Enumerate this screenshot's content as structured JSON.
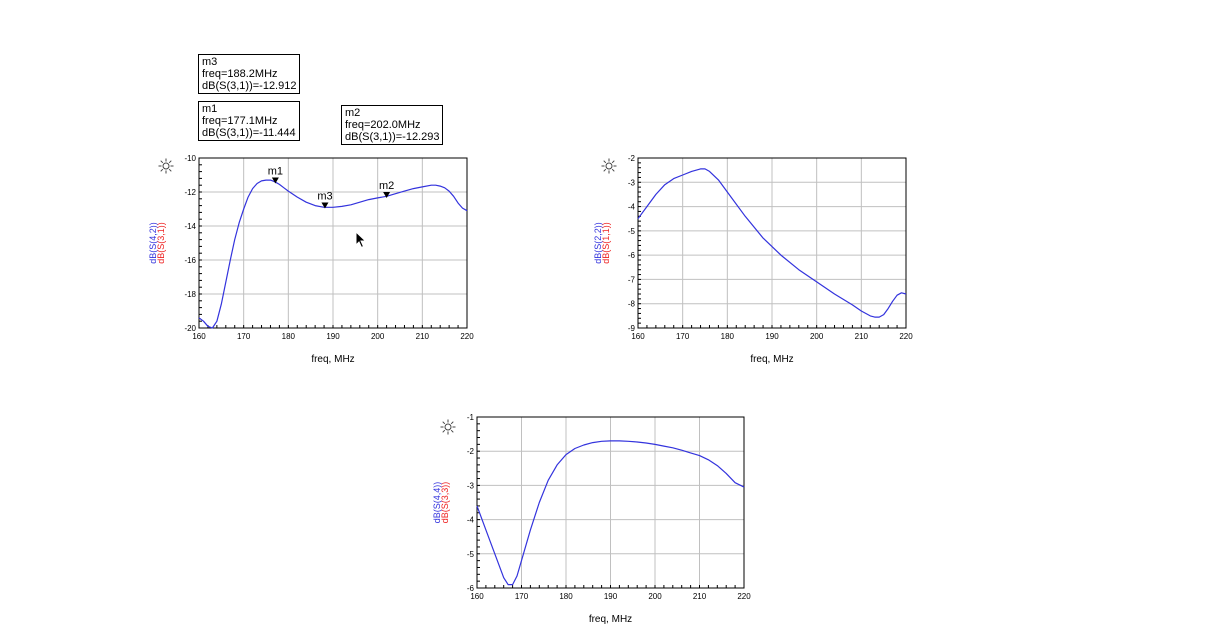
{
  "markers": [
    {
      "id": "m3",
      "name": "m3",
      "freq": "freq=188.2MHz",
      "value": "dB(S(3,1))=-12.912"
    },
    {
      "id": "m1",
      "name": "m1",
      "freq": "freq=177.1MHz",
      "value": "dB(S(3,1))=-11.444"
    },
    {
      "id": "m2",
      "name": "m2",
      "freq": "freq=202.0MHz",
      "value": "dB(S(3,1))=-12.293"
    }
  ],
  "colors": {
    "blue": "#3333dd",
    "red": "#ee2222",
    "grid": "#c0c0c0",
    "axis": "#000000"
  },
  "icons": {
    "settings": "sun-gear-icon",
    "cursor": "mouse-pointer-icon"
  },
  "chart_data": [
    {
      "id": "chart1",
      "type": "line",
      "xlabel": "freq, MHz",
      "ylabels": [
        {
          "text": "dB(S(4,2))",
          "color": "#3333dd"
        },
        {
          "text": "dB(S(3,1))",
          "color": "#ee2222"
        }
      ],
      "xlim": [
        160,
        220
      ],
      "ylim": [
        -20,
        -10
      ],
      "xticks": [
        160,
        170,
        180,
        190,
        200,
        210,
        220
      ],
      "yticks": [
        -20,
        -18,
        -16,
        -14,
        -12,
        -10
      ],
      "grid": true,
      "series": [
        {
          "color": "#3333dd",
          "x": [
            160,
            161,
            162,
            163,
            164,
            165,
            166,
            167,
            168,
            169,
            170,
            171,
            172,
            173,
            174,
            175,
            176,
            177,
            178,
            179,
            180,
            182,
            184,
            186,
            188,
            190,
            192,
            194,
            196,
            198,
            200,
            202,
            204,
            206,
            208,
            210,
            212,
            213,
            214,
            215,
            216,
            217,
            218,
            219,
            220
          ],
          "y": [
            -19.4,
            -19.6,
            -19.9,
            -20.0,
            -19.6,
            -18.6,
            -17.3,
            -16.0,
            -14.8,
            -13.8,
            -13.0,
            -12.3,
            -11.8,
            -11.5,
            -11.35,
            -11.3,
            -11.3,
            -11.4,
            -11.55,
            -11.75,
            -11.95,
            -12.3,
            -12.6,
            -12.8,
            -12.9,
            -12.9,
            -12.85,
            -12.75,
            -12.6,
            -12.45,
            -12.35,
            -12.25,
            -12.1,
            -11.95,
            -11.8,
            -11.7,
            -11.6,
            -11.6,
            -11.65,
            -11.75,
            -11.95,
            -12.25,
            -12.65,
            -12.95,
            -13.1
          ]
        }
      ],
      "markers": [
        {
          "name": "m1",
          "x": 177.1,
          "y": -11.444
        },
        {
          "name": "m3",
          "x": 188.2,
          "y": -12.912
        },
        {
          "name": "m2",
          "x": 202.0,
          "y": -12.293
        }
      ]
    },
    {
      "id": "chart2",
      "type": "line",
      "xlabel": "freq, MHz",
      "ylabels": [
        {
          "text": "dB(S(2,2))",
          "color": "#3333dd"
        },
        {
          "text": "dB(S(1,1))",
          "color": "#ee2222"
        }
      ],
      "xlim": [
        160,
        220
      ],
      "ylim": [
        -9,
        -2
      ],
      "xticks": [
        160,
        170,
        180,
        190,
        200,
        210,
        220
      ],
      "yticks": [
        -9,
        -8,
        -7,
        -6,
        -5,
        -4,
        -3,
        -2
      ],
      "grid": true,
      "series": [
        {
          "color": "#3333dd",
          "x": [
            160,
            162,
            164,
            166,
            168,
            170,
            172,
            174,
            175,
            176,
            178,
            180,
            184,
            188,
            192,
            196,
            200,
            204,
            208,
            210,
            212,
            213,
            214,
            215,
            216,
            217,
            218,
            219,
            220
          ],
          "y": [
            -4.5,
            -4.0,
            -3.5,
            -3.1,
            -2.85,
            -2.7,
            -2.55,
            -2.45,
            -2.45,
            -2.55,
            -2.9,
            -3.4,
            -4.4,
            -5.3,
            -6.0,
            -6.6,
            -7.1,
            -7.6,
            -8.05,
            -8.3,
            -8.5,
            -8.55,
            -8.55,
            -8.45,
            -8.2,
            -7.9,
            -7.65,
            -7.55,
            -7.6
          ]
        }
      ],
      "markers": []
    },
    {
      "id": "chart3",
      "type": "line",
      "xlabel": "freq, MHz",
      "ylabels": [
        {
          "text": "dB(S(4,4))",
          "color": "#3333dd"
        },
        {
          "text": "dB(S(3,3))",
          "color": "#ee2222"
        }
      ],
      "xlim": [
        160,
        220
      ],
      "ylim": [
        -6,
        -1
      ],
      "xticks": [
        160,
        170,
        180,
        190,
        200,
        210,
        220
      ],
      "yticks": [
        -6,
        -5,
        -4,
        -3,
        -2,
        -1
      ],
      "grid": true,
      "series": [
        {
          "color": "#3333dd",
          "x": [
            160,
            162,
            164,
            166,
            167,
            168,
            169,
            170,
            172,
            174,
            176,
            178,
            180,
            182,
            184,
            186,
            188,
            190,
            192,
            194,
            196,
            198,
            200,
            202,
            204,
            206,
            208,
            210,
            212,
            214,
            216,
            218,
            220
          ],
          "y": [
            -3.6,
            -4.3,
            -5.0,
            -5.7,
            -5.9,
            -5.9,
            -5.65,
            -5.2,
            -4.3,
            -3.5,
            -2.85,
            -2.4,
            -2.1,
            -1.92,
            -1.82,
            -1.75,
            -1.71,
            -1.7,
            -1.7,
            -1.71,
            -1.73,
            -1.76,
            -1.8,
            -1.85,
            -1.9,
            -1.97,
            -2.05,
            -2.13,
            -2.25,
            -2.42,
            -2.65,
            -2.92,
            -3.05
          ]
        }
      ],
      "markers": []
    }
  ]
}
